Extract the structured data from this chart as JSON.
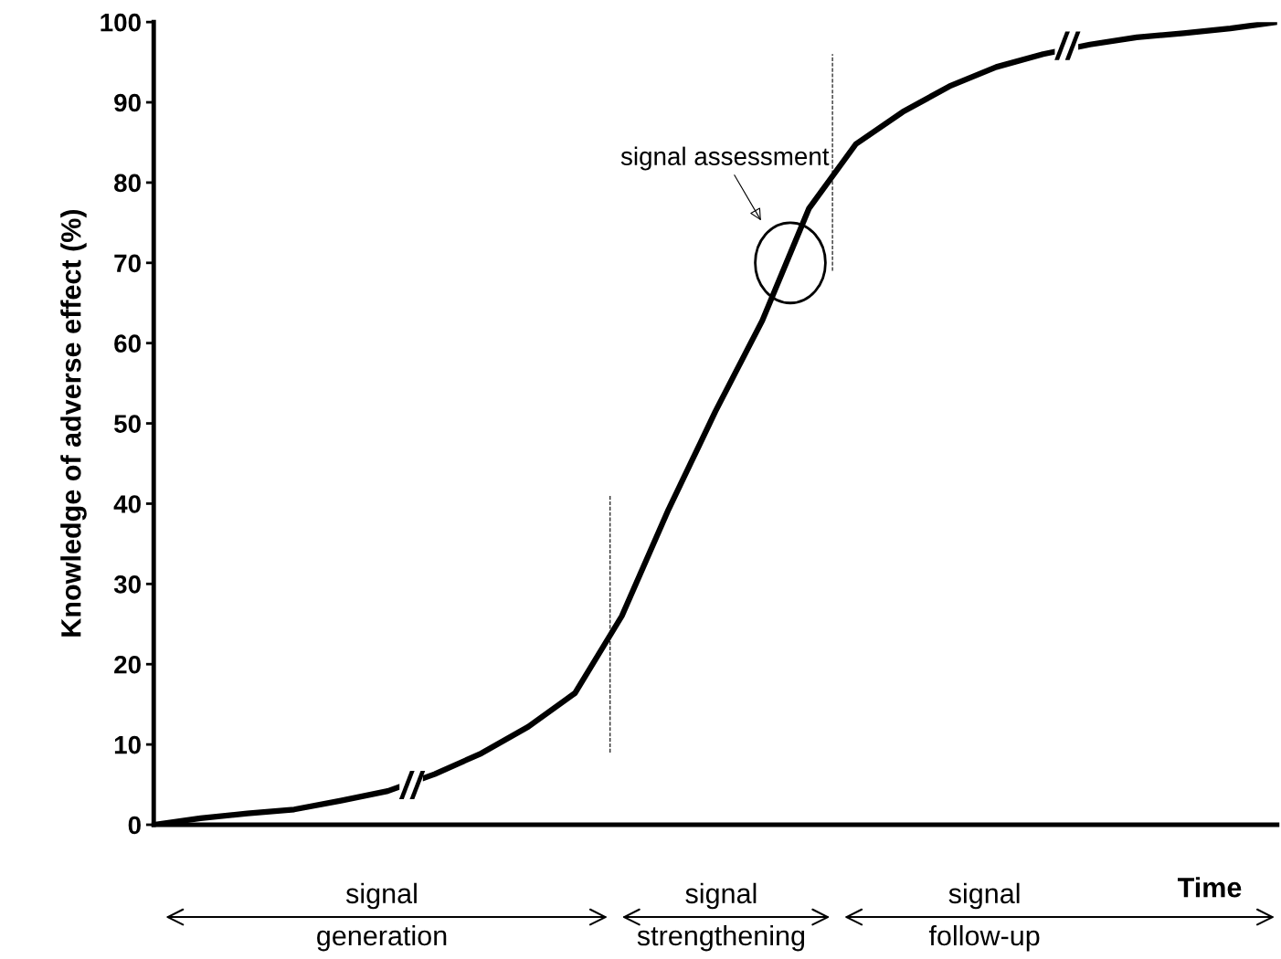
{
  "chart_data": {
    "type": "line",
    "xlabel": "Time",
    "ylabel": "Knowledge of adverse effect (%)",
    "categories": [
      null,
      null,
      null,
      null,
      null,
      null,
      null,
      null,
      null,
      null,
      null,
      null,
      null,
      null,
      null,
      null,
      null,
      null,
      null,
      null,
      null,
      null,
      null,
      null,
      null
    ],
    "series": [
      {
        "color": "#000000",
        "values": [
          0,
          0.8,
          1.4,
          1.9,
          3.0,
          4.2,
          6.3,
          8.9,
          12.2,
          16.4,
          26,
          39.3,
          51.5,
          62.8,
          76.8,
          84.8,
          88.8,
          92,
          94.4,
          96,
          97.2,
          98.1,
          98.6,
          99.2,
          100
        ]
      }
    ],
    "ylim": [
      0,
      100
    ],
    "yticks": [
      0,
      10,
      20,
      30,
      40,
      50,
      60,
      70,
      80,
      90,
      100
    ],
    "annotations": [
      "signal assessment",
      "//",
      "//",
      "signal\ngeneration",
      "signal\nstrengthening",
      "signal\nfollow-up"
    ],
    "grid": false,
    "legend": false,
    "marker": "none",
    "line_style": "solid"
  }
}
